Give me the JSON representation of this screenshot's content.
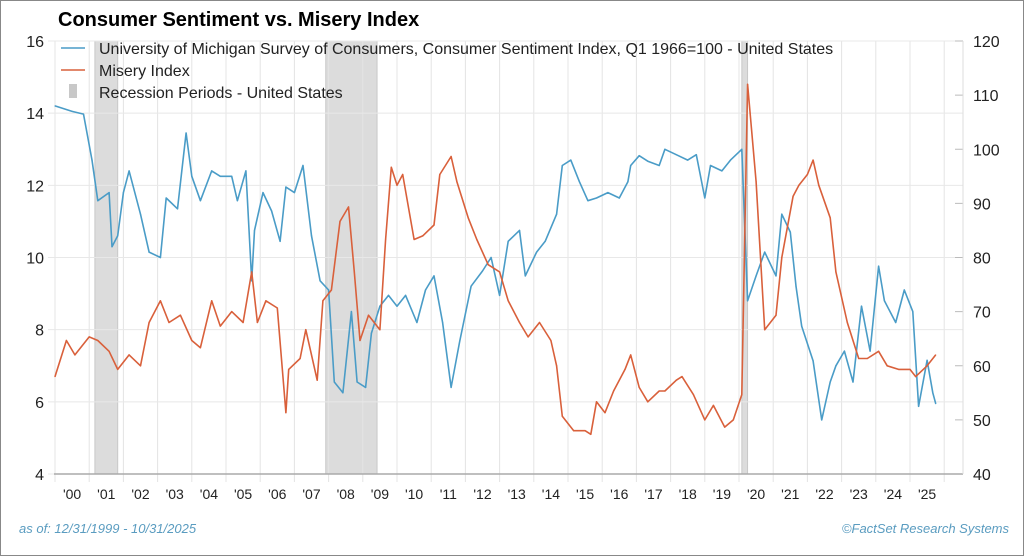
{
  "chart_data": {
    "type": "line",
    "title": "Consumer Sentiment vs. Misery Index",
    "x_tick_labels": [
      "'00",
      "'01",
      "'02",
      "'03",
      "'04",
      "'05",
      "'06",
      "'07",
      "'08",
      "'09",
      "'10",
      "'11",
      "'12",
      "'13",
      "'14",
      "'15",
      "'16",
      "'17",
      "'18",
      "'19",
      "'20",
      "'21",
      "'22",
      "'23",
      "'24",
      "'25"
    ],
    "xlim": [
      "1999-12",
      "2025-10"
    ],
    "left_axis": {
      "ylim": [
        4,
        16
      ],
      "ticks": [
        4,
        6,
        8,
        10,
        12,
        14,
        16
      ]
    },
    "right_axis": {
      "ylim": [
        40,
        120
      ],
      "ticks": [
        40,
        50,
        60,
        70,
        80,
        90,
        100,
        110,
        120
      ]
    },
    "grid": true,
    "legend_placement": "top-left",
    "series": [
      {
        "name": "University of Michigan Survey of Consumers, Consumer Sentiment Index, Q1 1966=100 - United States",
        "axis": "right",
        "color": "#4a9cc7",
        "points": [
          [
            "2000-01",
            108
          ],
          [
            "2000-07",
            107
          ],
          [
            "2000-11",
            106.5
          ],
          [
            "2001-02",
            98
          ],
          [
            "2001-04",
            90.5
          ],
          [
            "2001-08",
            92
          ],
          [
            "2001-09",
            82
          ],
          [
            "2001-11",
            84
          ],
          [
            "2002-01",
            92
          ],
          [
            "2002-03",
            96
          ],
          [
            "2002-07",
            88
          ],
          [
            "2002-10",
            81
          ],
          [
            "2003-02",
            80
          ],
          [
            "2003-04",
            91
          ],
          [
            "2003-08",
            89
          ],
          [
            "2003-11",
            103
          ],
          [
            "2004-01",
            95
          ],
          [
            "2004-04",
            90.5
          ],
          [
            "2004-08",
            96
          ],
          [
            "2004-11",
            95
          ],
          [
            "2005-03",
            95
          ],
          [
            "2005-05",
            90.5
          ],
          [
            "2005-08",
            96
          ],
          [
            "2005-10",
            75.7
          ],
          [
            "2005-11",
            85
          ],
          [
            "2006-02",
            92
          ],
          [
            "2006-05",
            88.6
          ],
          [
            "2006-08",
            83
          ],
          [
            "2006-10",
            93
          ],
          [
            "2007-01",
            92
          ],
          [
            "2007-04",
            97
          ],
          [
            "2007-07",
            84
          ],
          [
            "2007-10",
            75.7
          ],
          [
            "2008-01",
            74
          ],
          [
            "2008-03",
            57
          ],
          [
            "2008-06",
            55
          ],
          [
            "2008-09",
            70
          ],
          [
            "2008-11",
            57
          ],
          [
            "2009-02",
            56
          ],
          [
            "2009-04",
            66
          ],
          [
            "2009-07",
            71
          ],
          [
            "2009-10",
            73
          ],
          [
            "2010-01",
            71
          ],
          [
            "2010-04",
            73
          ],
          [
            "2010-08",
            68
          ],
          [
            "2010-11",
            74
          ],
          [
            "2011-02",
            76.6
          ],
          [
            "2011-05",
            68
          ],
          [
            "2011-08",
            56
          ],
          [
            "2011-11",
            64.5
          ],
          [
            "2012-03",
            74.7
          ],
          [
            "2012-07",
            77.5
          ],
          [
            "2012-10",
            80
          ],
          [
            "2013-01",
            73
          ],
          [
            "2013-04",
            83
          ],
          [
            "2013-08",
            85
          ],
          [
            "2013-10",
            76.6
          ],
          [
            "2014-02",
            81
          ],
          [
            "2014-05",
            83
          ],
          [
            "2014-09",
            88
          ],
          [
            "2014-11",
            97
          ],
          [
            "2015-02",
            98
          ],
          [
            "2015-05",
            94
          ],
          [
            "2015-08",
            90.5
          ],
          [
            "2015-11",
            91
          ],
          [
            "2016-03",
            92
          ],
          [
            "2016-07",
            91
          ],
          [
            "2016-10",
            94
          ],
          [
            "2016-11",
            97
          ],
          [
            "2017-02",
            98.8
          ],
          [
            "2017-05",
            97.8
          ],
          [
            "2017-09",
            97
          ],
          [
            "2017-11",
            100
          ],
          [
            "2018-03",
            99
          ],
          [
            "2018-07",
            98
          ],
          [
            "2018-10",
            99
          ],
          [
            "2019-01",
            91
          ],
          [
            "2019-03",
            97
          ],
          [
            "2019-07",
            96
          ],
          [
            "2019-10",
            98
          ],
          [
            "2020-02",
            100
          ],
          [
            "2020-04",
            72
          ],
          [
            "2020-07",
            76.6
          ],
          [
            "2020-10",
            81
          ],
          [
            "2021-02",
            76.6
          ],
          [
            "2021-04",
            88
          ],
          [
            "2021-07",
            84.7
          ],
          [
            "2021-09",
            74.7
          ],
          [
            "2021-11",
            67.3
          ],
          [
            "2022-03",
            60.9
          ],
          [
            "2022-06",
            50
          ],
          [
            "2022-09",
            57
          ],
          [
            "2022-11",
            60
          ],
          [
            "2023-02",
            62.7
          ],
          [
            "2023-05",
            57
          ],
          [
            "2023-08",
            71
          ],
          [
            "2023-11",
            62.7
          ],
          [
            "2024-02",
            78.4
          ],
          [
            "2024-04",
            72
          ],
          [
            "2024-08",
            68
          ],
          [
            "2024-11",
            74
          ],
          [
            "2025-02",
            70
          ],
          [
            "2025-04",
            52.5
          ],
          [
            "2025-07",
            61
          ],
          [
            "2025-09",
            55
          ],
          [
            "2025-10",
            53
          ]
        ]
      },
      {
        "name": "Misery Index",
        "axis": "left",
        "color": "#d9603b",
        "points": [
          [
            "2000-01",
            6.7
          ],
          [
            "2000-05",
            7.7
          ],
          [
            "2000-08",
            7.3
          ],
          [
            "2001-01",
            7.8
          ],
          [
            "2001-04",
            7.7
          ],
          [
            "2001-08",
            7.4
          ],
          [
            "2001-11",
            6.9
          ],
          [
            "2002-03",
            7.3
          ],
          [
            "2002-07",
            7.0
          ],
          [
            "2002-10",
            8.2
          ],
          [
            "2003-02",
            8.8
          ],
          [
            "2003-05",
            8.2
          ],
          [
            "2003-09",
            8.4
          ],
          [
            "2004-01",
            7.7
          ],
          [
            "2004-04",
            7.5
          ],
          [
            "2004-08",
            8.8
          ],
          [
            "2004-11",
            8.1
          ],
          [
            "2005-03",
            8.5
          ],
          [
            "2005-07",
            8.2
          ],
          [
            "2005-10",
            9.6
          ],
          [
            "2005-12",
            8.2
          ],
          [
            "2006-03",
            8.8
          ],
          [
            "2006-07",
            8.6
          ],
          [
            "2006-10",
            5.7
          ],
          [
            "2006-11",
            6.9
          ],
          [
            "2007-03",
            7.2
          ],
          [
            "2007-05",
            8.0
          ],
          [
            "2007-09",
            6.6
          ],
          [
            "2007-11",
            8.8
          ],
          [
            "2008-02",
            9.1
          ],
          [
            "2008-05",
            11.0
          ],
          [
            "2008-08",
            11.4
          ],
          [
            "2008-10",
            9.6
          ],
          [
            "2008-12",
            7.7
          ],
          [
            "2009-03",
            8.4
          ],
          [
            "2009-07",
            8.0
          ],
          [
            "2009-09",
            10.5
          ],
          [
            "2009-11",
            12.5
          ],
          [
            "2010-01",
            12.0
          ],
          [
            "2010-03",
            12.3
          ],
          [
            "2010-07",
            10.5
          ],
          [
            "2010-10",
            10.6
          ],
          [
            "2011-02",
            10.9
          ],
          [
            "2011-04",
            12.3
          ],
          [
            "2011-08",
            12.8
          ],
          [
            "2011-10",
            12.1
          ],
          [
            "2012-02",
            11.1
          ],
          [
            "2012-05",
            10.5
          ],
          [
            "2012-09",
            9.8
          ],
          [
            "2013-01",
            9.6
          ],
          [
            "2013-04",
            8.8
          ],
          [
            "2013-08",
            8.2
          ],
          [
            "2013-11",
            7.8
          ],
          [
            "2014-03",
            8.2
          ],
          [
            "2014-07",
            7.7
          ],
          [
            "2014-09",
            7.0
          ],
          [
            "2014-11",
            5.6
          ],
          [
            "2015-03",
            5.2
          ],
          [
            "2015-07",
            5.2
          ],
          [
            "2015-09",
            5.1
          ],
          [
            "2015-11",
            6.0
          ],
          [
            "2016-02",
            5.7
          ],
          [
            "2016-05",
            6.3
          ],
          [
            "2016-09",
            6.9
          ],
          [
            "2016-11",
            7.3
          ],
          [
            "2017-02",
            6.4
          ],
          [
            "2017-05",
            6.0
          ],
          [
            "2017-09",
            6.3
          ],
          [
            "2017-11",
            6.3
          ],
          [
            "2018-03",
            6.6
          ],
          [
            "2018-05",
            6.7
          ],
          [
            "2018-09",
            6.2
          ],
          [
            "2019-01",
            5.5
          ],
          [
            "2019-04",
            5.9
          ],
          [
            "2019-08",
            5.3
          ],
          [
            "2019-11",
            5.5
          ],
          [
            "2020-02",
            6.2
          ],
          [
            "2020-04",
            14.8
          ],
          [
            "2020-07",
            12.1
          ],
          [
            "2020-10",
            8.0
          ],
          [
            "2021-02",
            8.4
          ],
          [
            "2021-04",
            10.0
          ],
          [
            "2021-08",
            11.7
          ],
          [
            "2021-10",
            12.0
          ],
          [
            "2022-01",
            12.3
          ],
          [
            "2022-03",
            12.7
          ],
          [
            "2022-05",
            12.0
          ],
          [
            "2022-09",
            11.1
          ],
          [
            "2022-11",
            9.6
          ],
          [
            "2023-03",
            8.2
          ],
          [
            "2023-07",
            7.2
          ],
          [
            "2023-10",
            7.2
          ],
          [
            "2024-02",
            7.4
          ],
          [
            "2024-05",
            7.0
          ],
          [
            "2024-09",
            6.9
          ],
          [
            "2025-01",
            6.9
          ],
          [
            "2025-03",
            6.7
          ],
          [
            "2025-07",
            7.0
          ],
          [
            "2025-10",
            7.3
          ]
        ]
      }
    ],
    "recession_legend": "Recession Periods - United States",
    "recessions": [
      [
        "2001-03",
        "2001-11"
      ],
      [
        "2007-12",
        "2009-06"
      ],
      [
        "2020-02",
        "2020-04"
      ]
    ],
    "recession_color": "#dcdcdc"
  },
  "footer": {
    "as_of": "as of: 12/31/1999 - 10/31/2025",
    "source": "©FactSet Research Systems"
  }
}
